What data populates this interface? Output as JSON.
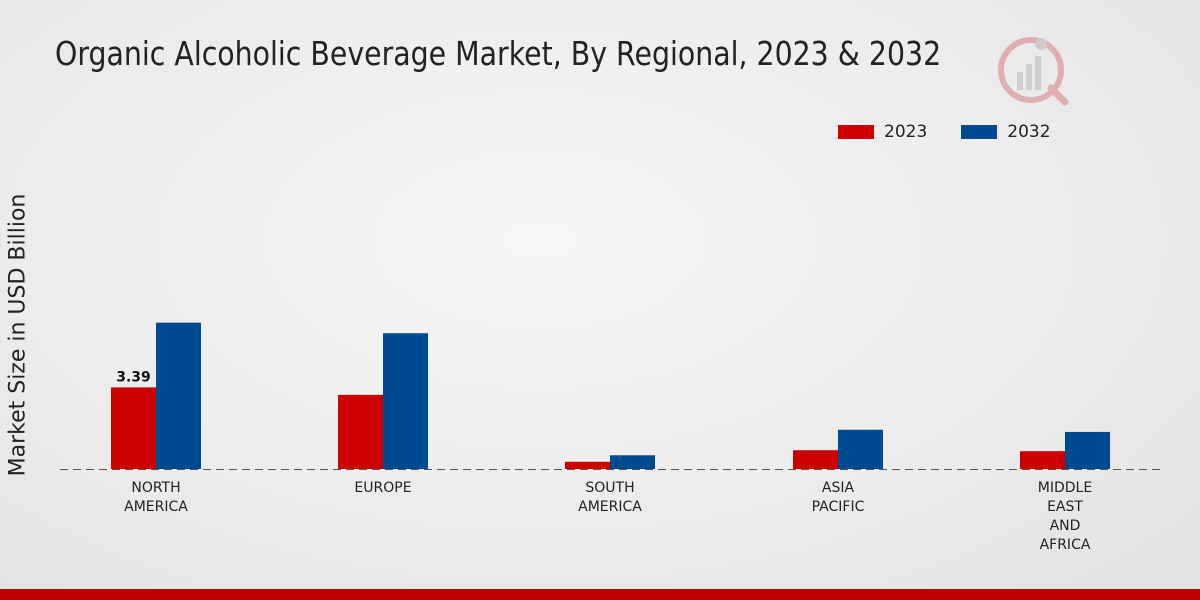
{
  "chart_data": {
    "type": "bar",
    "title": "Organic Alcoholic Beverage Market, By Regional, 2023 & 2032",
    "xlabel": "",
    "ylabel": "Market Size in USD Billion",
    "categories": [
      [
        "NORTH",
        "AMERICA"
      ],
      [
        "EUROPE"
      ],
      [
        "SOUTH",
        "AMERICA"
      ],
      [
        "ASIA",
        "PACIFIC"
      ],
      [
        "MIDDLE",
        "EAST",
        "AND",
        "AFRICA"
      ]
    ],
    "series": [
      {
        "name": "2023",
        "color": "#cc0000",
        "values": [
          3.39,
          3.08,
          0.3,
          0.78,
          0.74
        ]
      },
      {
        "name": "2032",
        "color": "#004a8f",
        "values": [
          6.08,
          5.64,
          0.57,
          1.63,
          1.54
        ]
      }
    ],
    "data_labels": [
      {
        "series": 0,
        "category": 0,
        "text": "3.39"
      }
    ],
    "ylim": [
      0,
      14.5
    ],
    "legend_position": "top-right"
  }
}
